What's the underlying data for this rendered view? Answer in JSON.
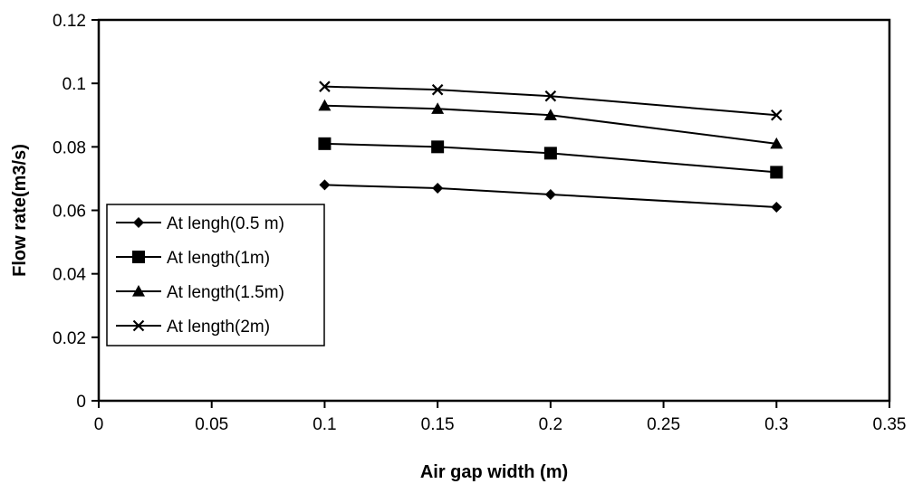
{
  "chart_data": {
    "type": "line",
    "xlabel": "Air gap width (m)",
    "ylabel": "Flow rate(m3/s)",
    "xlim": [
      0,
      0.35
    ],
    "ylim": [
      0,
      0.12
    ],
    "x_ticks": [
      0,
      0.05,
      0.1,
      0.15,
      0.2,
      0.25,
      0.3,
      0.35
    ],
    "x_tick_labels": [
      "0",
      "0.05",
      "0.1",
      "0.15",
      "0.2",
      "0.25",
      "0.3",
      "0.35"
    ],
    "y_ticks": [
      0,
      0.02,
      0.04,
      0.06,
      0.08,
      0.1,
      0.12
    ],
    "y_tick_labels": [
      "0",
      "0.02",
      "0.04",
      "0.06",
      "0.08",
      "0.1",
      "0.12"
    ],
    "grid": false,
    "legend_position": "left",
    "x": [
      0.1,
      0.15,
      0.2,
      0.3
    ],
    "series": [
      {
        "name": "At lengh(0.5 m)",
        "values": [
          0.068,
          0.067,
          0.065,
          0.061
        ],
        "marker": "diamond",
        "color": "#000000"
      },
      {
        "name": "At length(1m)",
        "values": [
          0.081,
          0.08,
          0.078,
          0.072
        ],
        "marker": "square",
        "color": "#000000"
      },
      {
        "name": "At length(1.5m)",
        "values": [
          0.093,
          0.092,
          0.09,
          0.081
        ],
        "marker": "triangle",
        "color": "#000000"
      },
      {
        "name": "At length(2m)",
        "values": [
          0.099,
          0.098,
          0.096,
          0.09
        ],
        "marker": "x",
        "color": "#000000"
      }
    ]
  }
}
